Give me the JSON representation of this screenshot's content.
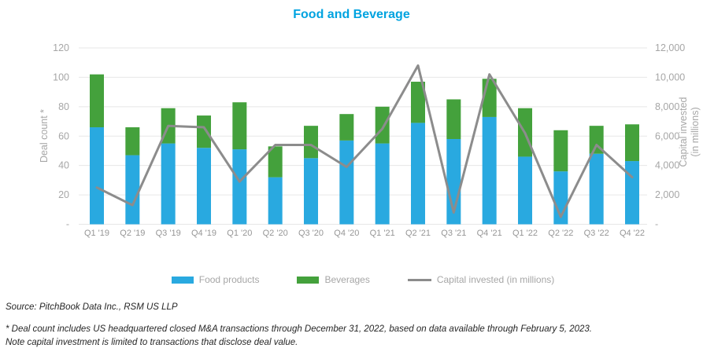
{
  "title": "Food and Beverage",
  "colors": {
    "title": "#00A3E0",
    "food_products": "#29A9E0",
    "beverages": "#44A13C",
    "capital_line": "#8C8C8C",
    "gridline": "#E7E7E7",
    "tick_text": "#A6A6A6",
    "x_text": "#969696"
  },
  "axes": {
    "left_title": "Deal count *",
    "right_title_line1": "Capital invested",
    "right_title_line2": "(in millions)",
    "left_tick_labels": [
      "120",
      "100",
      "80",
      "60",
      "40",
      "20",
      "-"
    ],
    "right_tick_labels": [
      "12,000",
      "10,000",
      "8,000",
      "6,000",
      "4,000",
      "2,000",
      "-"
    ]
  },
  "legend": {
    "items": [
      {
        "label": "Food products",
        "marker": "blue-bar-swatch"
      },
      {
        "label": "Beverages",
        "marker": "green-bar-swatch"
      },
      {
        "label": "Capital invested (in millions)",
        "marker": "gray-line-swatch"
      }
    ]
  },
  "footer": {
    "source": "Source: PitchBook Data Inc., RSM US LLP",
    "note1": "* Deal count includes US headquartered closed M&A transactions through December 31, 2022, based on data available through February 5, 2023.",
    "note2": "Note capital investment is limited to transactions that disclose deal value."
  },
  "chart_data": {
    "type": "bar",
    "subtype": "stacked-bars-with-line",
    "title": "Food and Beverage",
    "categories": [
      "Q1 '19",
      "Q2 '19",
      "Q3 '19",
      "Q4 '19",
      "Q1 '20",
      "Q2 '20",
      "Q3 '20",
      "Q4 '20",
      "Q1 '21",
      "Q2 '21",
      "Q3 '21",
      "Q4 '21",
      "Q1 '22",
      "Q2 '22",
      "Q3 '22",
      "Q4 '22"
    ],
    "series": [
      {
        "name": "Food products",
        "type": "bar",
        "stack": "deals",
        "axis": "left",
        "values": [
          66,
          47,
          55,
          52,
          51,
          32,
          45,
          57,
          55,
          69,
          58,
          73,
          46,
          36,
          48,
          43
        ]
      },
      {
        "name": "Beverages",
        "type": "bar",
        "stack": "deals",
        "axis": "left",
        "values": [
          36,
          19,
          24,
          22,
          32,
          21,
          22,
          18,
          25,
          28,
          27,
          26,
          33,
          28,
          19,
          25
        ]
      },
      {
        "name": "Capital invested (in millions)",
        "type": "line",
        "axis": "right",
        "values": [
          2500,
          1300,
          6700,
          6600,
          2900,
          5400,
          5400,
          3900,
          6500,
          10800,
          800,
          10200,
          6200,
          500,
          5400,
          3200
        ]
      }
    ],
    "left_axis": {
      "label": "Deal count *",
      "min": 0,
      "max": 120,
      "tick_step": 20
    },
    "right_axis": {
      "label": "Capital invested (in millions)",
      "min": 0,
      "max": 12000,
      "tick_step": 2000
    },
    "grid": "horizontal",
    "legend_position": "bottom"
  }
}
